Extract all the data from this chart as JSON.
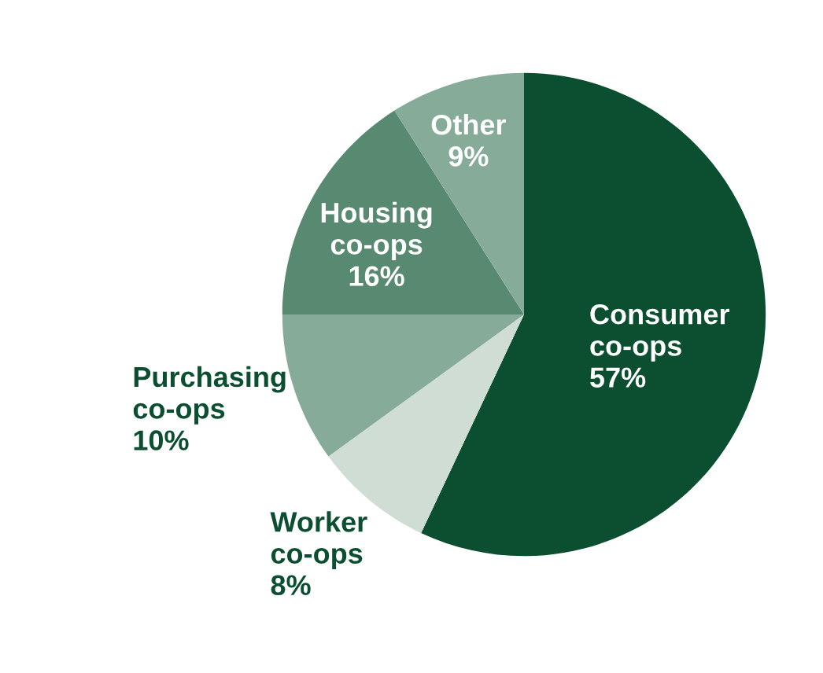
{
  "chart_data": {
    "type": "pie",
    "categories": [
      "Consumer co-ops",
      "Worker co-ops",
      "Purchasing co-ops",
      "Housing co-ops",
      "Other"
    ],
    "values": [
      57,
      8,
      10,
      16,
      9
    ],
    "colors": [
      "#0b4f30",
      "#cfddd5",
      "#86ab98",
      "#578a70",
      "#86ab98"
    ],
    "value_labels": [
      "57%",
      "8%",
      "10%",
      "16%",
      "9%"
    ]
  }
}
